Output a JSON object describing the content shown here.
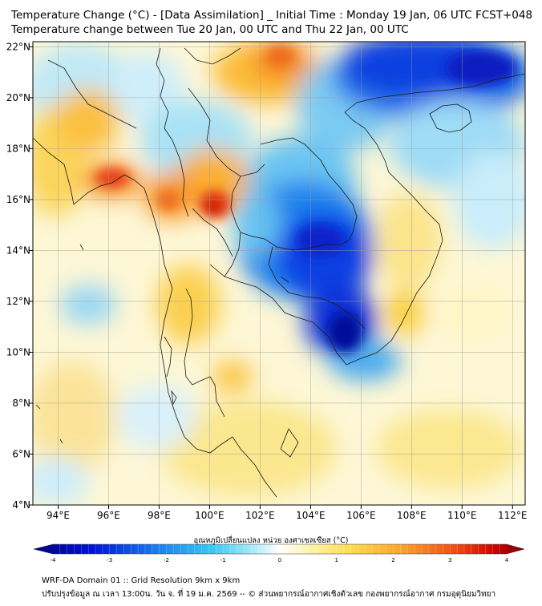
{
  "header": {
    "title_line1": "Temperature Change (°C) - [Data Assimilation] _ Initial Time : Monday 19 Jan, 06 UTC FCST+048",
    "title_line2": "Temperature change between Tue 20 Jan, 00 UTC and Thu 22 Jan, 00 UTC"
  },
  "map": {
    "lon_labels": [
      "94°E",
      "96°E",
      "98°E",
      "100°E",
      "102°E",
      "104°E",
      "106°E",
      "108°E",
      "110°E",
      "112°E"
    ],
    "lon_values": [
      94,
      96,
      98,
      100,
      102,
      104,
      106,
      108,
      110,
      112
    ],
    "lat_labels": [
      "22°N",
      "20°N",
      "18°N",
      "16°N",
      "14°N",
      "12°N",
      "10°N",
      "8°N",
      "6°N",
      "4°N"
    ],
    "lat_values": [
      22,
      20,
      18,
      16,
      14,
      12,
      10,
      8,
      6,
      4
    ],
    "lon_range": [
      93,
      112.5
    ],
    "lat_range": [
      4,
      22.2
    ]
  },
  "colorbar": {
    "label": "อุณหภูมิเปลี่ยนแปลง หน่วย องศาเซลเซียส (°C)",
    "tick_labels": [
      "-4",
      "-3",
      "-2",
      "-1",
      "0",
      "1",
      "2",
      "3",
      "4"
    ],
    "tick_values": [
      -4,
      -3,
      -2,
      -1,
      0,
      1,
      2,
      3,
      4
    ],
    "range": [
      -4,
      4
    ],
    "colors": [
      "#00007e",
      "#0013d6",
      "#1b7bf2",
      "#35c7f0",
      "#bfeffa",
      "#ffffff",
      "#fdf6c0",
      "#fbe050",
      "#fba328",
      "#f24a13",
      "#cc0000",
      "#7a0000"
    ]
  },
  "footer": {
    "line1": "WRF-DA Domain 01 :: Grid Resolution 9km x 9km",
    "line2": "ปรับปรุงข้อมูล ณ เวลา 13:00น. วัน จ. ที่ 19 ม.ค. 2569 -- © ส่วนพยากรณ์อากาศเชิงตัวเลข กองพยากรณ์อากาศ กรมอุตุนิยมวิทยา"
  }
}
